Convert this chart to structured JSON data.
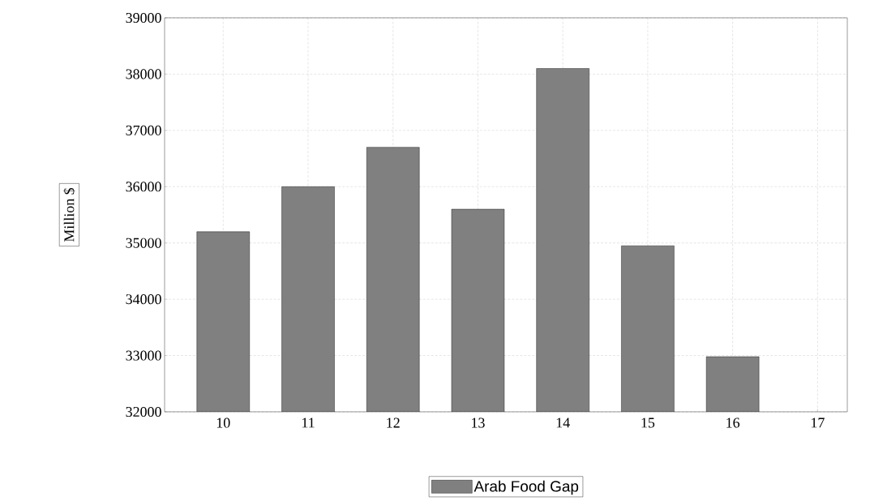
{
  "chart_data": {
    "type": "bar",
    "ylabel": "Million $",
    "categories": [
      "10",
      "11",
      "12",
      "13",
      "14",
      "15",
      "16",
      "17"
    ],
    "series": [
      {
        "name": "Arab Food Gap",
        "color": "#808080",
        "values": [
          35200,
          36000,
          36700,
          35600,
          38100,
          34950,
          32980,
          null
        ]
      }
    ],
    "ylim": [
      32000,
      39000
    ],
    "yticks": [
      32000,
      33000,
      34000,
      35000,
      36000,
      37000,
      38000,
      39000
    ],
    "grid": true,
    "legend": "bottom"
  }
}
